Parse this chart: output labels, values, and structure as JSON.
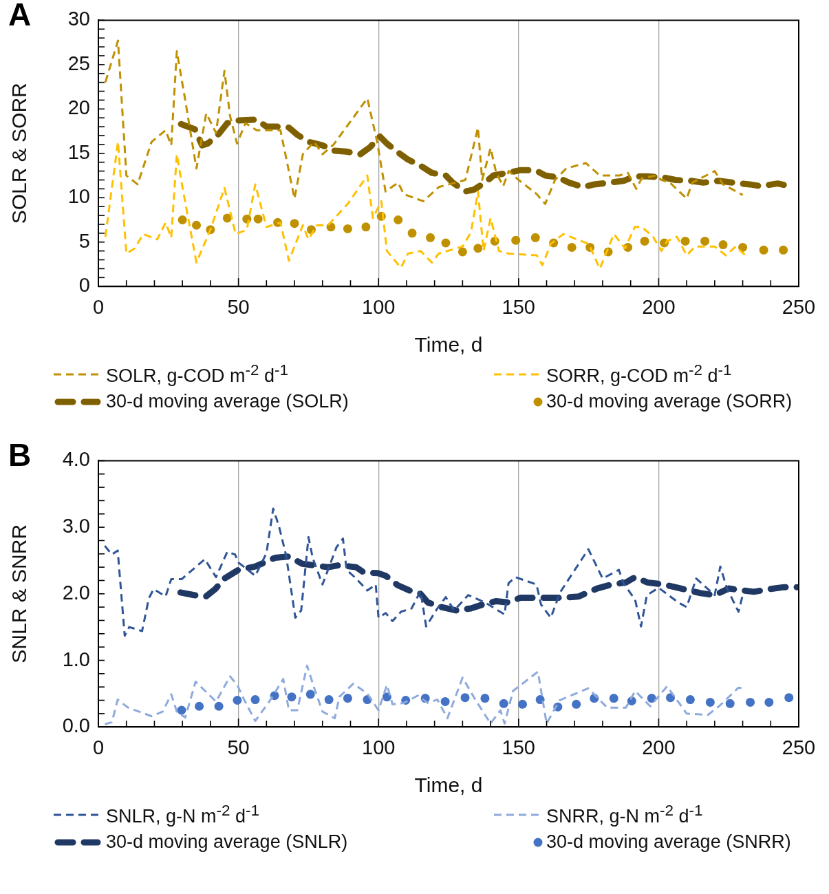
{
  "chart_data": [
    {
      "type": "line",
      "annotations": [
        "A"
      ],
      "xlabel": "Time, d",
      "ylabel": "SOLR & SORR",
      "xlim": [
        0,
        250
      ],
      "xticks": [
        0,
        {
          "value": 10,
          "label": null
        },
        {
          "value": 20,
          "label": null
        },
        {
          "value": 30,
          "label": null
        },
        {
          "value": 40,
          "label": null
        },
        50,
        {
          "value": 60,
          "label": null
        },
        {
          "value": 70,
          "label": null
        },
        {
          "value": 80,
          "label": null
        },
        {
          "value": 90,
          "label": null
        },
        100,
        {
          "value": 110,
          "label": null
        },
        {
          "value": 120,
          "label": null
        },
        {
          "value": 130,
          "label": null
        },
        {
          "value": 140,
          "label": null
        },
        150,
        {
          "value": 160,
          "label": null
        },
        {
          "value": 170,
          "label": null
        },
        {
          "value": 180,
          "label": null
        },
        {
          "value": 190,
          "label": null
        },
        200,
        {
          "value": 210,
          "label": null
        },
        {
          "value": 220,
          "label": null
        },
        {
          "value": 230,
          "label": null
        },
        {
          "value": 240,
          "label": null
        },
        250
      ],
      "ylim": [
        0,
        30
      ],
      "yticks": [
        0,
        {
          "value": 1,
          "label": null
        },
        {
          "value": 2,
          "label": null
        },
        {
          "value": 3,
          "label": null
        },
        {
          "value": 4,
          "label": null
        },
        5,
        {
          "value": 6,
          "label": null
        },
        {
          "value": 7,
          "label": null
        },
        {
          "value": 8,
          "label": null
        },
        {
          "value": 9,
          "label": null
        },
        10,
        {
          "value": 11,
          "label": null
        },
        {
          "value": 12,
          "label": null
        },
        {
          "value": 13,
          "label": null
        },
        {
          "value": 14,
          "label": null
        },
        15,
        {
          "value": 16,
          "label": null
        },
        {
          "value": 17,
          "label": null
        },
        {
          "value": 18,
          "label": null
        },
        {
          "value": 19,
          "label": null
        },
        20,
        {
          "value": 21,
          "label": null
        },
        {
          "value": 22,
          "label": null
        },
        {
          "value": 23,
          "label": null
        },
        {
          "value": 24,
          "label": null
        },
        25,
        {
          "value": 26,
          "label": null
        },
        {
          "value": 27,
          "label": null
        },
        {
          "value": 28,
          "label": null
        },
        {
          "value": 29,
          "label": null
        },
        30
      ],
      "grid": "x",
      "legend": "bottom",
      "marker": "none",
      "series": [
        {
          "name": "SOLR,  g-COD m$^{-2}$ d$^{-1}$",
          "color": "#bf9000",
          "line_style": "dashed",
          "x": [
            2.5,
            7,
            10,
            14,
            19,
            24,
            26,
            28,
            31,
            35,
            38.5,
            42,
            45,
            47,
            49.5,
            52.5,
            56.5,
            65,
            70,
            73,
            77,
            80,
            84,
            96,
            99.5,
            102.5,
            107,
            109,
            116,
            121.5,
            131,
            135.5,
            137,
            140,
            142,
            144.5,
            146.5,
            150,
            156.5,
            159.5,
            163,
            167,
            174,
            179,
            186,
            189,
            192,
            194,
            199,
            201,
            204,
            210,
            212,
            220,
            223,
            230
          ],
          "values": [
            23,
            27.7,
            12.5,
            11.5,
            16.3,
            17.6,
            15.9,
            26.5,
            21,
            13.3,
            19.5,
            17.3,
            24.3,
            19.2,
            16.1,
            18.4,
            17.6,
            17.6,
            9.9,
            14.9,
            16.3,
            14.9,
            16,
            21.2,
            16.3,
            10.7,
            11.7,
            10.4,
            9.6,
            11.2,
            12,
            17.9,
            12,
            15.6,
            12.8,
            11.3,
            13,
            12,
            10.4,
            9.3,
            12,
            13.3,
            13.9,
            12.5,
            12.5,
            12.8,
            11,
            12.2,
            12.5,
            12,
            11.7,
            9.9,
            11.7,
            13,
            11.5,
            10.3
          ]
        },
        {
          "name": "SORR, g-COD m$^{-2}$ d$^{-1}$",
          "color": "#ffc000",
          "line_style": "dashed",
          "x": [
            2.5,
            7,
            10,
            13,
            16,
            21,
            24,
            26,
            28,
            30,
            35,
            40,
            45,
            49,
            53,
            56,
            60,
            65,
            68,
            73,
            75,
            78,
            82,
            89,
            96,
            98,
            101,
            103,
            108,
            110.5,
            115,
            119,
            121.5,
            130,
            133,
            135.5,
            137.5,
            140,
            143,
            146.5,
            156.5,
            158.5,
            161.5,
            166,
            175,
            179,
            184,
            188,
            191.5,
            194,
            198,
            201,
            203,
            206.5,
            210,
            213,
            220,
            224,
            227.5,
            231
          ],
          "values": [
            5.6,
            16.3,
            3.7,
            4.3,
            5.9,
            5.3,
            7.2,
            5.5,
            14.9,
            11.2,
            2.7,
            6.4,
            11.1,
            5.9,
            6.4,
            11.5,
            6.7,
            7.2,
            2.9,
            6.9,
            5.3,
            6.9,
            6.9,
            9.3,
            12.5,
            7.7,
            9.6,
            4,
            2.1,
            3.7,
            4,
            2.7,
            3.7,
            4.5,
            6.1,
            10.7,
            4,
            7.7,
            4,
            3.7,
            3.5,
            2.4,
            4.8,
            5.9,
            4.8,
            2,
            5.9,
            4.3,
            6.7,
            6.7,
            5.6,
            4,
            5.1,
            5.6,
            3.5,
            4.5,
            4.5,
            3.5,
            4.5,
            3.5
          ]
        },
        {
          "name": "30-d moving average (SOLR)",
          "color": "#7f6000",
          "line_style": "dashed",
          "x": [
            29.5,
            34.5,
            37,
            39,
            43,
            46,
            50,
            56.5,
            60,
            64,
            68,
            71,
            75,
            80,
            84,
            88.5,
            93.5,
            97,
            100.5,
            103,
            107,
            110.5,
            115,
            119,
            124,
            126.5,
            131,
            134,
            138,
            141,
            146,
            150.5,
            156,
            159.5,
            164,
            168,
            173,
            177,
            182.5,
            187.5,
            191.5,
            196,
            201.5,
            206,
            211.5,
            216,
            221.5,
            226.5,
            232.5,
            236.5,
            242.5,
            246.5
          ],
          "values": [
            18.3,
            17.7,
            15.9,
            16.1,
            17.2,
            18.4,
            18.7,
            18.8,
            18,
            18,
            17.9,
            17.1,
            16.3,
            15.9,
            15.3,
            15.2,
            14.9,
            15.7,
            16.9,
            16.1,
            15.1,
            14.3,
            13.6,
            12.8,
            12.5,
            11.7,
            10.7,
            10.9,
            11.7,
            12.5,
            12.8,
            13.1,
            13.1,
            12.5,
            12.3,
            11.7,
            11.2,
            11.5,
            11.7,
            11.9,
            12.4,
            12.4,
            12.3,
            12,
            11.9,
            11.7,
            11.9,
            11.7,
            11.5,
            11.3,
            11.6,
            11.3
          ]
        },
        {
          "name": "30-d moving average (SORR)",
          "type": "scatter",
          "color": "#bf9000",
          "marker": "circle",
          "x": [
            30,
            35,
            40,
            46,
            53,
            57,
            64,
            70,
            76,
            83,
            89,
            95.5,
            101,
            107,
            112,
            118.5,
            124,
            130,
            135.5,
            141.5,
            149,
            156,
            162.5,
            169,
            175.5,
            182,
            189,
            195,
            202,
            209.5,
            216.5,
            223,
            230,
            237.5,
            244.5
          ],
          "values": [
            7.5,
            6.9,
            6.4,
            7.7,
            7.6,
            7.6,
            7.2,
            7.1,
            6.4,
            6.7,
            6.5,
            6.7,
            7.9,
            7.5,
            6,
            5.5,
            4.9,
            3.9,
            4.3,
            5.1,
            5.2,
            5.5,
            4.9,
            4.4,
            4.4,
            3.9,
            4.4,
            5.1,
            4.9,
            5.1,
            5.1,
            4.7,
            4.4,
            4.1,
            4.1
          ]
        }
      ]
    },
    {
      "type": "line",
      "annotations": [
        "B"
      ],
      "xlabel": "Time, d",
      "ylabel": "SNLR & SNRR",
      "xlim": [
        0,
        250
      ],
      "xticks": [
        0,
        {
          "value": 10,
          "label": null
        },
        {
          "value": 20,
          "label": null
        },
        {
          "value": 30,
          "label": null
        },
        {
          "value": 40,
          "label": null
        },
        50,
        {
          "value": 60,
          "label": null
        },
        {
          "value": 70,
          "label": null
        },
        {
          "value": 80,
          "label": null
        },
        {
          "value": 90,
          "label": null
        },
        100,
        {
          "value": 110,
          "label": null
        },
        {
          "value": 120,
          "label": null
        },
        {
          "value": 130,
          "label": null
        },
        {
          "value": 140,
          "label": null
        },
        150,
        {
          "value": 160,
          "label": null
        },
        {
          "value": 170,
          "label": null
        },
        {
          "value": 180,
          "label": null
        },
        {
          "value": 190,
          "label": null
        },
        200,
        {
          "value": 210,
          "label": null
        },
        {
          "value": 220,
          "label": null
        },
        {
          "value": 230,
          "label": null
        },
        {
          "value": 240,
          "label": null
        },
        250
      ],
      "ylim": [
        0,
        4
      ],
      "yticks": [
        {
          "value": 0,
          "label": "0.0"
        },
        {
          "value": 0.2,
          "label": null
        },
        {
          "value": 0.4,
          "label": null
        },
        {
          "value": 0.6,
          "label": null
        },
        {
          "value": 0.8,
          "label": null
        },
        {
          "value": 1,
          "label": "1.0"
        },
        {
          "value": 1.2,
          "label": null
        },
        {
          "value": 1.4,
          "label": null
        },
        {
          "value": 1.6,
          "label": null
        },
        {
          "value": 1.8,
          "label": null
        },
        {
          "value": 2,
          "label": "2.0"
        },
        {
          "value": 2.2,
          "label": null
        },
        {
          "value": 2.4,
          "label": null
        },
        {
          "value": 2.6,
          "label": null
        },
        {
          "value": 2.8,
          "label": null
        },
        {
          "value": 3,
          "label": "3.0"
        },
        {
          "value": 3.2,
          "label": null
        },
        {
          "value": 3.4,
          "label": null
        },
        {
          "value": 3.6,
          "label": null
        },
        {
          "value": 3.8,
          "label": null
        },
        {
          "value": 4,
          "label": "4.0"
        }
      ],
      "grid": "x",
      "legend": "bottom",
      "marker": "none",
      "series": [
        {
          "name": "SNLR,  g-N m$^{-2}$ d$^{-1}$",
          "color": "#2f5597",
          "line_style": "dashed",
          "x": [
            2.3,
            4.8,
            6.9,
            9.4,
            11,
            15.6,
            18,
            19.7,
            24,
            26,
            29.7,
            38,
            42,
            46,
            48.8,
            50,
            56,
            60,
            62.4,
            64.5,
            67,
            70.3,
            72.4,
            75,
            76.5,
            80,
            85,
            87.3,
            88.6,
            92,
            96,
            99,
            100,
            102.6,
            105,
            108,
            111.8,
            115,
            117,
            121,
            124,
            127,
            132,
            138,
            145,
            146.4,
            148.9,
            156.4,
            158,
            161.5,
            164.8,
            174.9,
            180,
            185.8,
            187.4,
            191.6,
            193.7,
            195.8,
            200,
            207,
            210,
            213.4,
            220,
            222,
            224.3,
            228.5,
            230
          ],
          "values": [
            2.72,
            2.59,
            2.65,
            1.37,
            1.5,
            1.44,
            1.93,
            2.07,
            1.96,
            2.22,
            2.22,
            2.52,
            2.25,
            2.63,
            2.59,
            2.47,
            2.27,
            2.61,
            3.28,
            3.01,
            2.58,
            1.64,
            1.75,
            2.85,
            2.54,
            2.14,
            2.7,
            2.83,
            2.36,
            2.23,
            2.05,
            2.14,
            1.64,
            1.71,
            1.59,
            1.73,
            1.78,
            2.04,
            1.51,
            1.78,
            1.95,
            1.75,
            1.98,
            1.87,
            1.69,
            2.16,
            2.25,
            2.14,
            1.84,
            1.64,
            2.02,
            2.67,
            2.23,
            2.36,
            2.16,
            1.91,
            1.51,
            1.98,
            2.09,
            1.87,
            1.8,
            2.23,
            1.98,
            2.41,
            2.09,
            1.73,
            1.98
          ]
        },
        {
          "name": "SNRR,  g-N m$^{-2}$ d$^{-1}$",
          "color": "#8faadc",
          "line_style": "dashed",
          "x": [
            2.3,
            4.8,
            6.9,
            10.6,
            19,
            23,
            26,
            28,
            31,
            34.7,
            42,
            47,
            49.6,
            52,
            56,
            61,
            66,
            68,
            71,
            74.5,
            77,
            80,
            84.4,
            86,
            91,
            96,
            100,
            103,
            105,
            109,
            114,
            117.6,
            121,
            124.6,
            130,
            134.7,
            140,
            143.5,
            145,
            148,
            156.9,
            160,
            164.6,
            174.9,
            181.6,
            188.3,
            191.6,
            197,
            203,
            210,
            217.6,
            221.8,
            228.5,
            230
          ],
          "values": [
            0.04,
            0.07,
            0.41,
            0.29,
            0.16,
            0.23,
            0.49,
            0.23,
            0.14,
            0.68,
            0.38,
            0.76,
            0.63,
            0.41,
            0.09,
            0.38,
            0.72,
            0.25,
            0.25,
            0.92,
            0.59,
            0.23,
            0.13,
            0.45,
            0.65,
            0.5,
            0.25,
            0.63,
            0.34,
            0.36,
            0.47,
            0.36,
            0.41,
            0.13,
            0.74,
            0.4,
            0.05,
            0.25,
            0.05,
            0.54,
            0.83,
            0.05,
            0.4,
            0.58,
            0.29,
            0.29,
            0.54,
            0.31,
            0.61,
            0.2,
            0.18,
            0.32,
            0.59,
            0.58
          ]
        },
        {
          "name": "30-d moving average (SNLR)",
          "color": "#203864",
          "line_style": "dashed",
          "x": [
            29.3,
            34.2,
            38.4,
            41.7,
            45,
            50,
            56,
            63,
            68,
            72.8,
            76.5,
            82,
            86,
            92,
            94.8,
            99.8,
            102.6,
            106.8,
            111,
            115,
            117.6,
            122.5,
            127.6,
            133,
            138,
            142,
            146.4,
            150.6,
            156.4,
            160.6,
            165.7,
            171.5,
            178,
            183.2,
            188.3,
            191.6,
            196,
            201.7,
            205.9,
            210.9,
            215,
            220,
            225,
            230,
            234,
            239.4,
            244.8,
            249.4
          ],
          "values": [
            2.02,
            1.98,
            1.96,
            2.07,
            2.23,
            2.36,
            2.41,
            2.54,
            2.56,
            2.45,
            2.43,
            2.4,
            2.43,
            2.4,
            2.32,
            2.31,
            2.27,
            2.13,
            2.05,
            2.0,
            1.87,
            1.8,
            1.75,
            1.78,
            1.85,
            1.89,
            1.87,
            1.94,
            1.94,
            1.94,
            1.94,
            1.96,
            2.08,
            2.14,
            2.17,
            2.25,
            2.17,
            2.14,
            2.1,
            2.05,
            2.01,
            1.98,
            2.08,
            2.05,
            2.03,
            2.07,
            2.1,
            2.1
          ]
        },
        {
          "name": "30-d moving average (SNRR)",
          "type": "scatter",
          "color": "#4472c4",
          "marker": "circle",
          "x": [
            29.7,
            36,
            43,
            49.6,
            56,
            62.9,
            69,
            75.7,
            82.3,
            89,
            96,
            103,
            109.7,
            116.7,
            123.8,
            130.9,
            138,
            144.7,
            151.4,
            157.7,
            164,
            170.6,
            177,
            184,
            190.4,
            197.5,
            204.2,
            211.3,
            218.4,
            225.5,
            232.7,
            239.4,
            246.5
          ],
          "values": [
            0.25,
            0.31,
            0.31,
            0.4,
            0.41,
            0.47,
            0.45,
            0.49,
            0.41,
            0.43,
            0.41,
            0.45,
            0.4,
            0.43,
            0.38,
            0.44,
            0.43,
            0.35,
            0.34,
            0.41,
            0.3,
            0.34,
            0.43,
            0.43,
            0.39,
            0.43,
            0.44,
            0.41,
            0.37,
            0.35,
            0.37,
            0.37,
            0.44
          ]
        }
      ]
    }
  ]
}
